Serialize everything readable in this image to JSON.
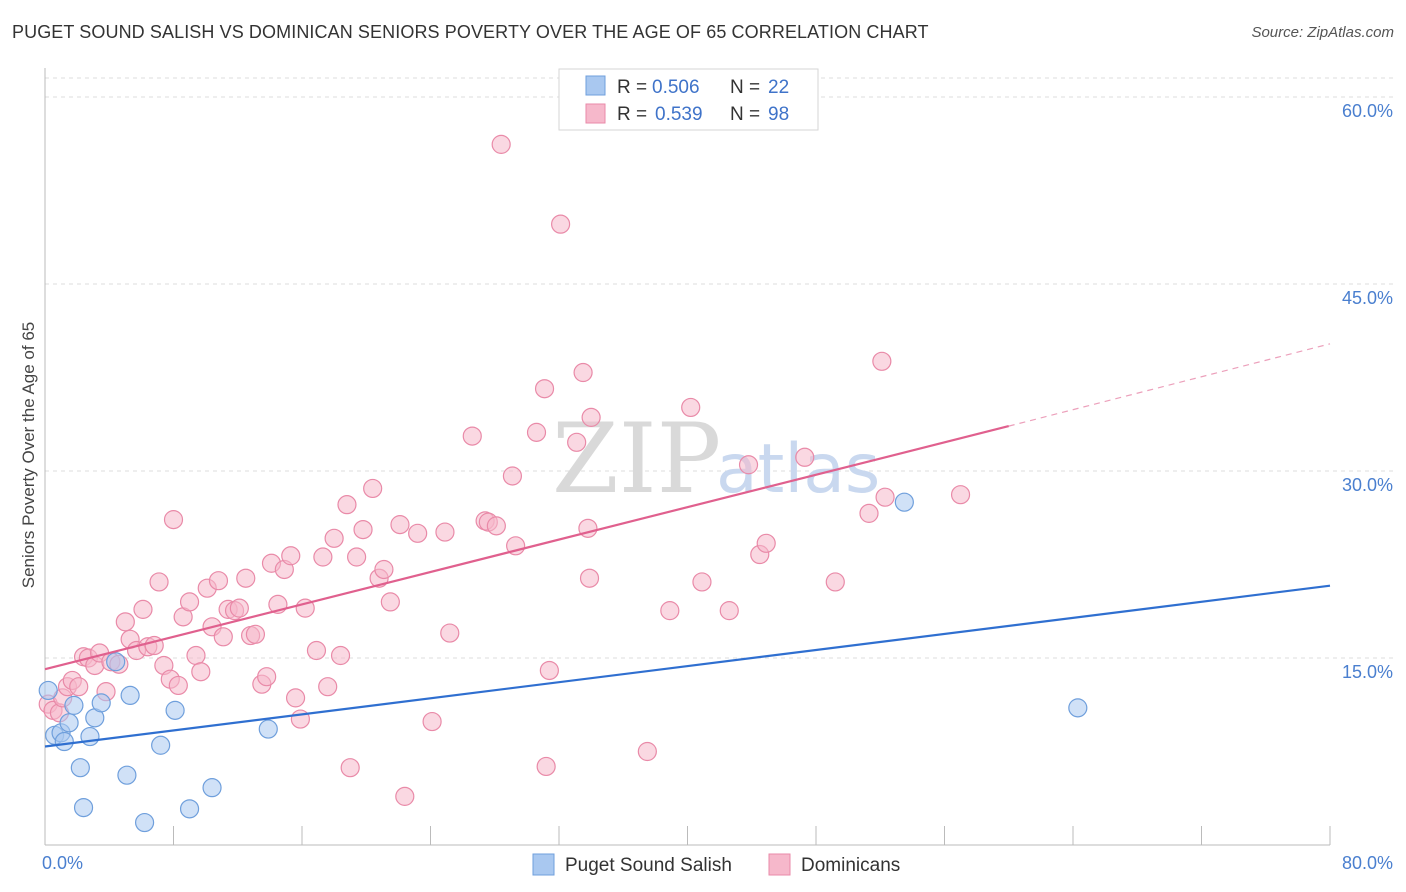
{
  "header": {
    "title": "PUGET SOUND SALISH VS DOMINICAN SENIORS POVERTY OVER THE AGE OF 65 CORRELATION CHART",
    "source": "Source: ZipAtlas.com"
  },
  "watermark": {
    "zip": "ZIP",
    "atlas": "atlas"
  },
  "legend": {
    "rows": [
      {
        "r_label": "R =",
        "r_value": "0.506",
        "n_label": "N =",
        "n_value": "22"
      },
      {
        "r_label": "R =",
        "r_value": "0.539",
        "n_label": "N =",
        "n_value": "98"
      }
    ]
  },
  "colors": {
    "blue_fill": "#a9c8f0",
    "blue_stroke": "#6f9fdc",
    "blue_line": "#2f6fd0",
    "pink_fill": "#f6b8cb",
    "pink_stroke": "#e98aa8",
    "pink_line": "#e0608e",
    "grid": "#dddddd",
    "tick_text": "#4a7fcf"
  },
  "chart_data": {
    "type": "scatter",
    "title": "PUGET SOUND SALISH VS DOMINICAN SENIORS POVERTY OVER THE AGE OF 65 CORRELATION CHART",
    "xlabel": "",
    "ylabel": "Seniors Poverty Over the Age of 65",
    "xlim": [
      0,
      80
    ],
    "ylim": [
      0,
      60
    ],
    "x_tick_labels": [
      "0.0%",
      "80.0%"
    ],
    "y_tick_values": [
      15,
      30,
      45,
      60
    ],
    "y_tick_labels": [
      "15.0%",
      "30.0%",
      "45.0%",
      "60.0%"
    ],
    "grid": true,
    "legend_position": "top-center",
    "series": [
      {
        "name": "Puget Sound Salish",
        "color": "#a9c8f0",
        "r": 0.506,
        "n": 22,
        "trend": {
          "x0": 0,
          "y0": 7.9,
          "x1": 80,
          "y1": 20.8
        },
        "points": [
          [
            0.2,
            12.4
          ],
          [
            0.6,
            8.8
          ],
          [
            1.0,
            9.0
          ],
          [
            1.2,
            8.3
          ],
          [
            1.5,
            9.8
          ],
          [
            1.8,
            11.2
          ],
          [
            2.2,
            6.2
          ],
          [
            2.4,
            3.0
          ],
          [
            2.8,
            8.7
          ],
          [
            3.1,
            10.2
          ],
          [
            3.5,
            11.4
          ],
          [
            4.4,
            14.7
          ],
          [
            5.1,
            5.6
          ],
          [
            5.3,
            12.0
          ],
          [
            6.2,
            1.8
          ],
          [
            7.2,
            8.0
          ],
          [
            8.1,
            10.8
          ],
          [
            9.0,
            2.9
          ],
          [
            10.4,
            4.6
          ],
          [
            13.9,
            9.3
          ],
          [
            53.5,
            27.5
          ],
          [
            64.3,
            11.0
          ]
        ]
      },
      {
        "name": "Dominicans",
        "color": "#f6b8cb",
        "r": 0.539,
        "n": 98,
        "trend": {
          "x0": 0,
          "y0": 14.1,
          "x1": 60,
          "y1": 33.6,
          "dash_to_x": 80,
          "dash_to_y": 40.2
        },
        "points": [
          [
            0.2,
            11.3
          ],
          [
            0.5,
            10.8
          ],
          [
            0.9,
            10.6
          ],
          [
            1.1,
            11.8
          ],
          [
            1.4,
            12.7
          ],
          [
            1.7,
            13.2
          ],
          [
            2.1,
            12.7
          ],
          [
            2.4,
            15.1
          ],
          [
            2.7,
            15.0
          ],
          [
            3.1,
            14.4
          ],
          [
            3.4,
            15.4
          ],
          [
            3.8,
            12.3
          ],
          [
            4.1,
            14.7
          ],
          [
            4.6,
            14.5
          ],
          [
            5.0,
            17.9
          ],
          [
            5.3,
            16.5
          ],
          [
            5.7,
            15.6
          ],
          [
            6.1,
            18.9
          ],
          [
            6.4,
            15.9
          ],
          [
            6.8,
            16.0
          ],
          [
            7.1,
            21.1
          ],
          [
            7.4,
            14.4
          ],
          [
            7.8,
            13.3
          ],
          [
            8.0,
            26.1
          ],
          [
            8.3,
            12.8
          ],
          [
            8.6,
            18.3
          ],
          [
            9.0,
            19.5
          ],
          [
            9.4,
            15.2
          ],
          [
            9.7,
            13.9
          ],
          [
            10.1,
            20.6
          ],
          [
            10.4,
            17.5
          ],
          [
            10.8,
            21.2
          ],
          [
            11.1,
            16.7
          ],
          [
            11.4,
            18.9
          ],
          [
            11.8,
            18.8
          ],
          [
            12.1,
            19.0
          ],
          [
            12.5,
            21.4
          ],
          [
            12.8,
            16.8
          ],
          [
            13.1,
            16.9
          ],
          [
            13.5,
            12.9
          ],
          [
            13.8,
            13.5
          ],
          [
            14.1,
            22.6
          ],
          [
            14.5,
            19.3
          ],
          [
            14.9,
            22.1
          ],
          [
            15.3,
            23.2
          ],
          [
            15.6,
            11.8
          ],
          [
            15.9,
            10.1
          ],
          [
            16.2,
            19.0
          ],
          [
            16.9,
            15.6
          ],
          [
            17.3,
            23.1
          ],
          [
            17.6,
            12.7
          ],
          [
            18.0,
            24.6
          ],
          [
            18.4,
            15.2
          ],
          [
            18.8,
            27.3
          ],
          [
            19.0,
            6.2
          ],
          [
            19.4,
            23.1
          ],
          [
            19.8,
            25.3
          ],
          [
            20.4,
            28.6
          ],
          [
            20.8,
            21.4
          ],
          [
            21.1,
            22.1
          ],
          [
            21.5,
            19.5
          ],
          [
            22.1,
            25.7
          ],
          [
            22.4,
            3.9
          ],
          [
            23.2,
            25.0
          ],
          [
            24.1,
            9.9
          ],
          [
            24.9,
            25.1
          ],
          [
            25.2,
            17.0
          ],
          [
            26.6,
            32.8
          ],
          [
            27.4,
            26.0
          ],
          [
            27.6,
            25.9
          ],
          [
            28.1,
            25.6
          ],
          [
            28.4,
            56.2
          ],
          [
            29.1,
            29.6
          ],
          [
            29.3,
            24.0
          ],
          [
            30.6,
            33.1
          ],
          [
            31.1,
            36.6
          ],
          [
            31.2,
            6.3
          ],
          [
            31.4,
            14.0
          ],
          [
            32.1,
            49.8
          ],
          [
            33.1,
            32.3
          ],
          [
            33.5,
            37.9
          ],
          [
            33.8,
            25.4
          ],
          [
            33.9,
            21.4
          ],
          [
            34.0,
            34.3
          ],
          [
            37.5,
            7.5
          ],
          [
            38.9,
            18.8
          ],
          [
            40.2,
            35.1
          ],
          [
            40.9,
            21.1
          ],
          [
            42.6,
            18.8
          ],
          [
            43.8,
            30.5
          ],
          [
            44.5,
            23.3
          ],
          [
            44.9,
            24.2
          ],
          [
            47.3,
            31.1
          ],
          [
            49.2,
            21.1
          ],
          [
            51.3,
            26.6
          ],
          [
            52.1,
            38.8
          ],
          [
            52.3,
            27.9
          ],
          [
            57.0,
            28.1
          ]
        ]
      }
    ]
  }
}
